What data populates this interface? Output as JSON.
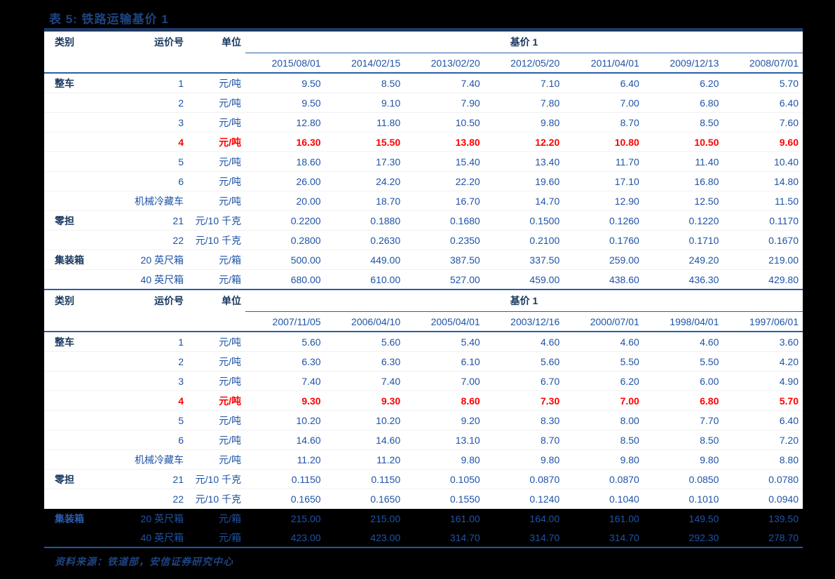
{
  "page": {
    "title": "表 5: 铁路运输基价 1",
    "source_note": "资料来源：铁道部，安信证券研究中心"
  },
  "colors": {
    "page_bg": "#000000",
    "panel_bg": "#FFFFFF",
    "title_navy": "#17375E",
    "text_blue": "#1E53A6",
    "highlight_red": "#FE0000",
    "rule_thin_blue": "#2B5EA7",
    "rule_thick_navy": "#1F3864"
  },
  "tables": [
    {
      "headers": {
        "category": "类别",
        "rate_no": "运价号",
        "unit": "单位",
        "price_group": "基价 1"
      },
      "dates": [
        "2015/08/01",
        "2014/02/15",
        "2013/02/20",
        "2012/05/20",
        "2011/04/01",
        "2009/12/13",
        "2008/07/01"
      ],
      "rows": [
        {
          "category": "整车",
          "rate_no": "1",
          "unit": "元/吨",
          "values": [
            "9.50",
            "8.50",
            "7.40",
            "7.10",
            "6.40",
            "6.20",
            "5.70"
          ],
          "highlight": false,
          "inverted": false
        },
        {
          "category": "",
          "rate_no": "2",
          "unit": "元/吨",
          "values": [
            "9.50",
            "9.10",
            "7.90",
            "7.80",
            "7.00",
            "6.80",
            "6.40"
          ],
          "highlight": false,
          "inverted": false
        },
        {
          "category": "",
          "rate_no": "3",
          "unit": "元/吨",
          "values": [
            "12.80",
            "11.80",
            "10.50",
            "9.80",
            "8.70",
            "8.50",
            "7.60"
          ],
          "highlight": false,
          "inverted": false
        },
        {
          "category": "",
          "rate_no": "4",
          "unit": "元/吨",
          "values": [
            "16.30",
            "15.50",
            "13.80",
            "12.20",
            "10.80",
            "10.50",
            "9.60"
          ],
          "highlight": true,
          "inverted": false
        },
        {
          "category": "",
          "rate_no": "5",
          "unit": "元/吨",
          "values": [
            "18.60",
            "17.30",
            "15.40",
            "13.40",
            "11.70",
            "11.40",
            "10.40"
          ],
          "highlight": false,
          "inverted": false
        },
        {
          "category": "",
          "rate_no": "6",
          "unit": "元/吨",
          "values": [
            "26.00",
            "24.20",
            "22.20",
            "19.60",
            "17.10",
            "16.80",
            "14.80"
          ],
          "highlight": false,
          "inverted": false
        },
        {
          "category": "",
          "rate_no": "机械冷藏车",
          "unit": "元/吨",
          "values": [
            "20.00",
            "18.70",
            "16.70",
            "14.70",
            "12.90",
            "12.50",
            "11.50"
          ],
          "highlight": false,
          "inverted": false
        },
        {
          "category": "零担",
          "rate_no": "21",
          "unit": "元/10 千克",
          "values": [
            "0.2200",
            "0.1880",
            "0.1680",
            "0.1500",
            "0.1260",
            "0.1220",
            "0.1170"
          ],
          "highlight": false,
          "inverted": false
        },
        {
          "category": "",
          "rate_no": "22",
          "unit": "元/10 千克",
          "values": [
            "0.2800",
            "0.2630",
            "0.2350",
            "0.2100",
            "0.1760",
            "0.1710",
            "0.1670"
          ],
          "highlight": false,
          "inverted": false
        },
        {
          "category": "集装箱",
          "rate_no": "20 英尺箱",
          "unit": "元/箱",
          "values": [
            "500.00",
            "449.00",
            "387.50",
            "337.50",
            "259.00",
            "249.20",
            "219.00"
          ],
          "highlight": false,
          "inverted": false
        },
        {
          "category": "",
          "rate_no": "40 英尺箱",
          "unit": "元/箱",
          "values": [
            "680.00",
            "610.00",
            "527.00",
            "459.00",
            "438.60",
            "436.30",
            "429.80"
          ],
          "highlight": false,
          "inverted": false
        }
      ]
    },
    {
      "headers": {
        "category": "类别",
        "rate_no": "运价号",
        "unit": "单位",
        "price_group": "基价 1"
      },
      "dates": [
        "2007/11/05",
        "2006/04/10",
        "2005/04/01",
        "2003/12/16",
        "2000/07/01",
        "1998/04/01",
        "1997/06/01"
      ],
      "rows": [
        {
          "category": "整车",
          "rate_no": "1",
          "unit": "元/吨",
          "values": [
            "5.60",
            "5.60",
            "5.40",
            "4.60",
            "4.60",
            "4.60",
            "3.60"
          ],
          "highlight": false,
          "inverted": false
        },
        {
          "category": "",
          "rate_no": "2",
          "unit": "元/吨",
          "values": [
            "6.30",
            "6.30",
            "6.10",
            "5.60",
            "5.50",
            "5.50",
            "4.20"
          ],
          "highlight": false,
          "inverted": false
        },
        {
          "category": "",
          "rate_no": "3",
          "unit": "元/吨",
          "values": [
            "7.40",
            "7.40",
            "7.00",
            "6.70",
            "6.20",
            "6.00",
            "4.90"
          ],
          "highlight": false,
          "inverted": false
        },
        {
          "category": "",
          "rate_no": "4",
          "unit": "元/吨",
          "values": [
            "9.30",
            "9.30",
            "8.60",
            "7.30",
            "7.00",
            "6.80",
            "5.70"
          ],
          "highlight": true,
          "inverted": false
        },
        {
          "category": "",
          "rate_no": "5",
          "unit": "元/吨",
          "values": [
            "10.20",
            "10.20",
            "9.20",
            "8.30",
            "8.00",
            "7.70",
            "6.40"
          ],
          "highlight": false,
          "inverted": false
        },
        {
          "category": "",
          "rate_no": "6",
          "unit": "元/吨",
          "values": [
            "14.60",
            "14.60",
            "13.10",
            "8.70",
            "8.50",
            "8.50",
            "7.20"
          ],
          "highlight": false,
          "inverted": false
        },
        {
          "category": "",
          "rate_no": "机械冷藏车",
          "unit": "元/吨",
          "values": [
            "11.20",
            "11.20",
            "9.80",
            "9.80",
            "9.80",
            "9.80",
            "8.80"
          ],
          "highlight": false,
          "inverted": false
        },
        {
          "category": "零担",
          "rate_no": "21",
          "unit": "元/10 千克",
          "values": [
            "0.1150",
            "0.1150",
            "0.1050",
            "0.0870",
            "0.0870",
            "0.0850",
            "0.0780"
          ],
          "highlight": false,
          "inverted": false
        },
        {
          "category": "",
          "rate_no": "22",
          "unit": "元/10 千克",
          "values": [
            "0.1650",
            "0.1650",
            "0.1550",
            "0.1240",
            "0.1040",
            "0.1010",
            "0.0940"
          ],
          "highlight": false,
          "inverted": false
        },
        {
          "category": "集装箱",
          "rate_no": "20 英尺箱",
          "unit": "元/箱",
          "values": [
            "215.00",
            "215.00",
            "161.00",
            "164.00",
            "161.00",
            "149.50",
            "139.50"
          ],
          "highlight": false,
          "inverted": true
        },
        {
          "category": "",
          "rate_no": "40 英尺箱",
          "unit": "元/箱",
          "values": [
            "423.00",
            "423.00",
            "314.70",
            "314.70",
            "314.70",
            "292.30",
            "278.70"
          ],
          "highlight": false,
          "inverted": true
        }
      ]
    }
  ]
}
